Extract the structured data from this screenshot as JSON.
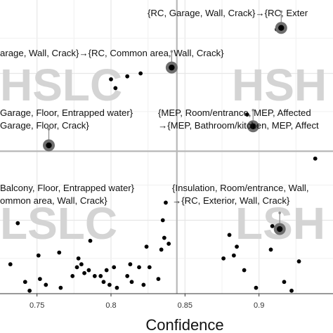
{
  "chart_data": {
    "type": "scatter",
    "xlabel": "Confidence",
    "ylabel": "",
    "xlim": [
      0.725,
      0.95
    ],
    "ylim": [
      0,
      1
    ],
    "grid": true,
    "x_ticks": [
      "0.75",
      "0.8",
      "0.85",
      "0.9"
    ],
    "quadrant_labels": [
      "HSLC",
      "HSH",
      "LSLC",
      "LSH"
    ],
    "points": [
      [
        0.732,
        0.1
      ],
      [
        0.737,
        0.24
      ],
      [
        0.742,
        0.04
      ],
      [
        0.745,
        0.01
      ],
      [
        0.751,
        0.13
      ],
      [
        0.752,
        0.05
      ],
      [
        0.756,
        0.03
      ],
      [
        0.765,
        0.14
      ],
      [
        0.766,
        0.02
      ],
      [
        0.774,
        0.06
      ],
      [
        0.777,
        0.09
      ],
      [
        0.778,
        0.12
      ],
      [
        0.78,
        0.1
      ],
      [
        0.782,
        0.07
      ],
      [
        0.785,
        0.08
      ],
      [
        0.786,
        0.18
      ],
      [
        0.789,
        0.06
      ],
      [
        0.793,
        0.06
      ],
      [
        0.795,
        0.04
      ],
      [
        0.797,
        0.08
      ],
      [
        0.799,
        0.03
      ],
      [
        0.802,
        0.09
      ],
      [
        0.804,
        0.02
      ],
      [
        0.811,
        0.06
      ],
      [
        0.813,
        0.1
      ],
      [
        0.814,
        0.04
      ],
      [
        0.819,
        0.09
      ],
      [
        0.822,
        0.03
      ],
      [
        0.824,
        0.16
      ],
      [
        0.826,
        0.09
      ],
      [
        0.832,
        0.05
      ],
      [
        0.834,
        0.15
      ],
      [
        0.835,
        0.25
      ],
      [
        0.836,
        0.19
      ],
      [
        0.837,
        0.31
      ],
      [
        0.839,
        0.17
      ],
      [
        0.8,
        0.73
      ],
      [
        0.803,
        0.7
      ],
      [
        0.811,
        0.74
      ],
      [
        0.82,
        0.75
      ],
      [
        0.876,
        0.12
      ],
      [
        0.88,
        0.2
      ],
      [
        0.883,
        0.13
      ],
      [
        0.885,
        0.16
      ],
      [
        0.89,
        0.08
      ],
      [
        0.898,
        0.02
      ],
      [
        0.909,
        0.23
      ],
      [
        0.917,
        0.04
      ],
      [
        0.922,
        0.01
      ],
      [
        0.927,
        0.11
      ],
      [
        0.892,
        0.61
      ],
      [
        0.938,
        0.46
      ],
      [
        0.908,
        0.15
      ],
      [
        0.912,
        0.9
      ]
    ],
    "highlighted": [
      {
        "x": 0.758,
        "y": 0.505,
        "label_lines": [
          "Garage, Floor, Entrapped water}",
          "Garage, Floor, Crack}"
        ]
      },
      {
        "x": 0.841,
        "y": 0.77,
        "label_lines": [
          "arage, Wall, Crack}→{RC, Common area, Wall, Crack}"
        ]
      },
      {
        "x": 0.896,
        "y": 0.57,
        "label_lines": [
          "{MEP, Room/entrance, MEP, Affected",
          "→{MEP, Bathroom/kitchen, MEP, Affect"
        ]
      },
      {
        "x": 0.915,
        "y": 0.905,
        "label_lines": [
          "{RC, Garage, Wall, Crack}→{RC, Exter"
        ]
      },
      {
        "x": 0.914,
        "y": 0.22,
        "label_lines": [
          "{Insulation, Room/entrance, Wall,",
          "→{RC, Exterior, Wall, Crack}"
        ]
      }
    ],
    "extra_labels": [
      {
        "label_lines": [
          "Balcony, Floor, Entrapped water}",
          "ommon area, Wall, Crack}"
        ]
      }
    ]
  }
}
